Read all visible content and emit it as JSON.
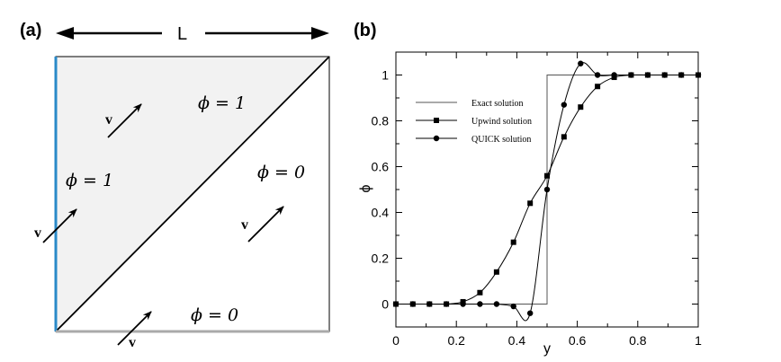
{
  "panel_a": {
    "label": "(a)",
    "length_label": "L",
    "regions": {
      "upper_right": "ϕ = 1",
      "left": "ϕ = 1",
      "right": "ϕ = 0",
      "bottom": "ϕ = 0"
    },
    "velocity_label": "v",
    "colors": {
      "inflow_left": "#2a8ac8",
      "inflow_bottom": "#aaaaaa",
      "shaded": "#f2f2f2"
    }
  },
  "chart_data": {
    "type": "line",
    "panel_label": "(b)",
    "xlabel": "y",
    "ylabel": "ϕ",
    "xlim": [
      0,
      1
    ],
    "ylim": [
      -0.1,
      1.1
    ],
    "x_ticks": [
      "0",
      "0.2",
      "0.4",
      "0.6",
      "0.8",
      "1"
    ],
    "y_ticks": [
      "0",
      "0.2",
      "0.4",
      "0.6",
      "0.8",
      "1"
    ],
    "legend_position": "upper-left",
    "series": [
      {
        "name": "Exact solution",
        "marker": "none",
        "x": [
          0,
          0.5,
          0.5,
          1
        ],
        "y": [
          0,
          0,
          1,
          1
        ]
      },
      {
        "name": "Upwind solution",
        "marker": "square",
        "x": [
          0,
          0.056,
          0.111,
          0.167,
          0.222,
          0.278,
          0.333,
          0.389,
          0.444,
          0.5,
          0.556,
          0.611,
          0.667,
          0.722,
          0.778,
          0.833,
          0.889,
          0.944,
          1.0
        ],
        "y": [
          0,
          0,
          0,
          0,
          0.01,
          0.05,
          0.14,
          0.27,
          0.44,
          0.56,
          0.73,
          0.86,
          0.95,
          0.99,
          1.0,
          1.0,
          1.0,
          1.0,
          1.0
        ]
      },
      {
        "name": "QUICK solution",
        "marker": "circle",
        "x": [
          0,
          0.056,
          0.111,
          0.167,
          0.222,
          0.278,
          0.333,
          0.389,
          0.444,
          0.5,
          0.556,
          0.611,
          0.667,
          0.722,
          0.778,
          0.833,
          0.889,
          0.944,
          1.0
        ],
        "y": [
          0,
          0,
          0,
          0,
          0,
          0,
          0,
          -0.01,
          -0.04,
          0.5,
          0.87,
          1.05,
          1.0,
          1.0,
          1.0,
          1.0,
          1.0,
          1.0,
          1.0
        ]
      }
    ]
  }
}
